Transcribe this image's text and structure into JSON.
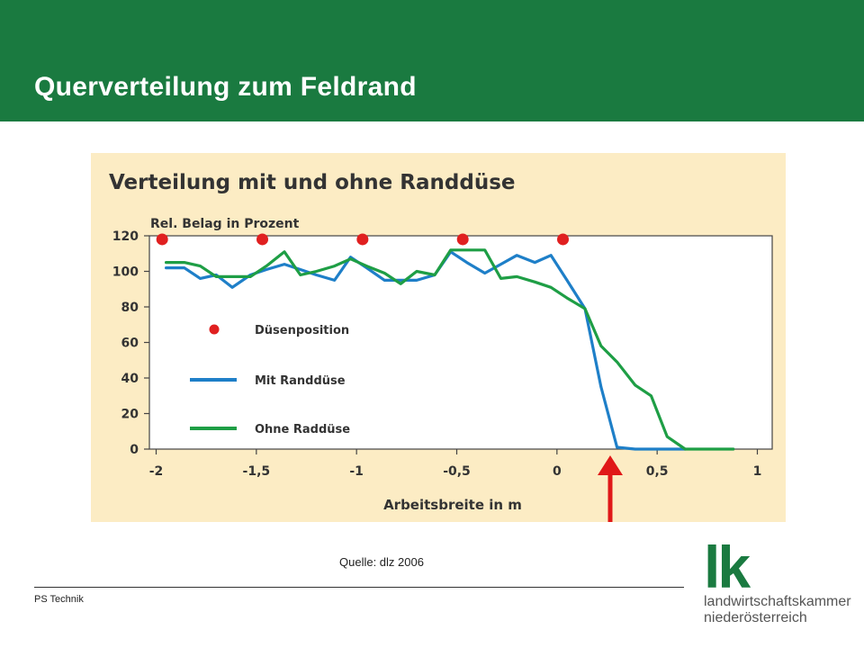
{
  "slide": {
    "title": "Querverteilung zum Feldrand",
    "source": "Quelle: dlz 2006",
    "footer": "PS Technik"
  },
  "logo": {
    "mark": "lk",
    "line1": "landwirtschaftskammer",
    "line2": "niederösterreich"
  },
  "colors": {
    "header": "#1a7a40",
    "figure_bg": "#fcecc4",
    "series_with": "#1e7fc8",
    "series_without": "#1e9e45",
    "nozzle": "#e02020",
    "arrow": "#e01818"
  },
  "chart_data": {
    "type": "line",
    "title": "Verteilung mit und ohne Randdüse",
    "ylabel": "Rel. Belag in Prozent",
    "xlabel": "Arbeitsbreite in m",
    "xlim": [
      -2,
      1
    ],
    "ylim": [
      0,
      120
    ],
    "xticks": [
      -2,
      -1.5,
      -1,
      -0.5,
      0,
      0.5,
      1
    ],
    "xtick_labels": [
      "-2",
      "-1,5",
      "-1",
      "-0,5",
      "0",
      "0,5",
      "1"
    ],
    "yticks": [
      0,
      20,
      40,
      60,
      80,
      100,
      120
    ],
    "ytick_labels": [
      "0",
      "20",
      "40",
      "60",
      "80",
      "100",
      "120"
    ],
    "grid": false,
    "legend": [
      {
        "label": "Düsenposition",
        "kind": "marker"
      },
      {
        "label": "Mit Randdüse",
        "kind": "line"
      },
      {
        "label": "Ohne Raddüse",
        "kind": "line"
      }
    ],
    "nozzle_positions": {
      "name": "Düsenposition",
      "x": [
        -1.97,
        -1.47,
        -0.97,
        -0.47,
        0.03
      ],
      "y": [
        118,
        118,
        118,
        118,
        118
      ]
    },
    "series": [
      {
        "name": "Mit Randdüse",
        "x": [
          -1.95,
          -1.86,
          -1.78,
          -1.7,
          -1.62,
          -1.53,
          -1.45,
          -1.36,
          -1.28,
          -1.2,
          -1.11,
          -1.03,
          -0.95,
          -0.86,
          -0.78,
          -0.7,
          -0.61,
          -0.53,
          -0.45,
          -0.36,
          -0.28,
          -0.2,
          -0.11,
          -0.03,
          0.05,
          0.14,
          0.22,
          0.3,
          0.39,
          0.47,
          0.55,
          0.64
        ],
        "y": [
          102,
          102,
          96,
          98,
          91,
          98,
          101,
          104,
          101,
          98,
          95,
          108,
          102,
          95,
          95,
          95,
          98,
          111,
          105,
          99,
          104,
          109,
          105,
          109,
          95,
          79,
          35,
          1,
          0,
          0,
          0,
          0
        ]
      },
      {
        "name": "Ohne Raddüse",
        "x": [
          -1.95,
          -1.86,
          -1.78,
          -1.7,
          -1.62,
          -1.53,
          -1.45,
          -1.36,
          -1.28,
          -1.2,
          -1.11,
          -1.03,
          -0.95,
          -0.86,
          -0.78,
          -0.7,
          -0.61,
          -0.53,
          -0.45,
          -0.36,
          -0.28,
          -0.2,
          -0.11,
          -0.03,
          0.05,
          0.14,
          0.22,
          0.3,
          0.39,
          0.47,
          0.55,
          0.64,
          0.72,
          0.8,
          0.88
        ],
        "y": [
          105,
          105,
          103,
          97,
          97,
          97,
          103,
          111,
          98,
          100,
          103,
          107,
          103,
          99,
          93,
          100,
          98,
          112,
          112,
          112,
          96,
          97,
          94,
          91,
          85,
          79,
          58,
          49,
          36,
          30,
          7,
          0,
          0,
          0,
          0
        ]
      }
    ]
  }
}
